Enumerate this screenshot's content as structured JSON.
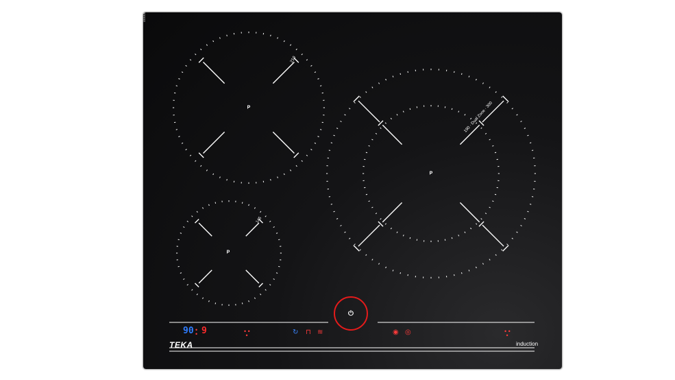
{
  "serial": "0000000",
  "brand": {
    "name": "TEKA",
    "subtitle": "induction"
  },
  "zones": {
    "top_left": {
      "letter": "P",
      "marking": "210"
    },
    "bottom_left": {
      "letter": "P",
      "marking": "145"
    },
    "right": {
      "letter": "P",
      "marking": "190 · Dual Zone · 300"
    }
  },
  "display": {
    "timer_value": "90",
    "level_value": "9"
  },
  "controls": {
    "power_symbol": "⏻",
    "icons": [
      "timer-icon",
      "pot-icon",
      "keep-warm-icon",
      "flex-icon",
      "boost-icon"
    ]
  },
  "colors": {
    "glass": "#0c0c0d",
    "accent_red": "#e41b1b",
    "accent_blue": "#2f7dff",
    "lines": "#ffffff"
  }
}
